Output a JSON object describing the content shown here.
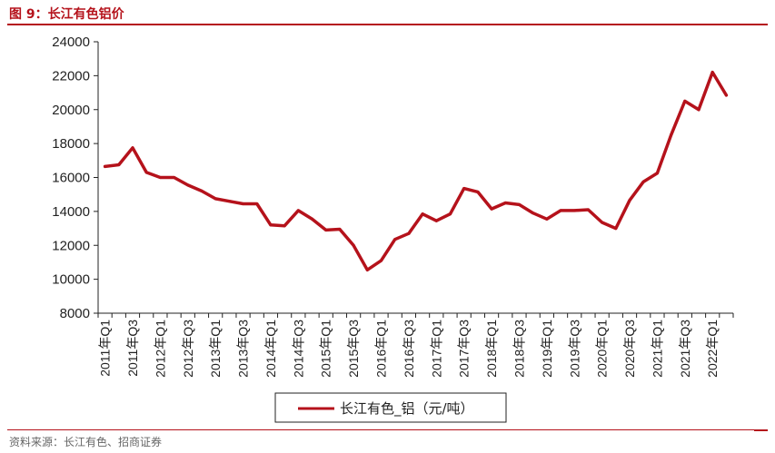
{
  "header": {
    "figure_title": "图 9：长江有色铝价"
  },
  "footer": {
    "source": "资料来源：长江有色、招商证券"
  },
  "chart_data": {
    "type": "line",
    "title": "",
    "xlabel": "",
    "ylabel": "",
    "ylim": [
      8000,
      24000
    ],
    "y_ticks": [
      8000,
      10000,
      12000,
      14000,
      16000,
      18000,
      20000,
      22000,
      24000
    ],
    "x_tick_labels": [
      "2011年Q1",
      "2011年Q3",
      "2012年Q1",
      "2012年Q3",
      "2013年Q1",
      "2013年Q3",
      "2014年Q1",
      "2014年Q3",
      "2015年Q1",
      "2015年Q3",
      "2016年Q1",
      "2016年Q3",
      "2017年Q1",
      "2017年Q3",
      "2018年Q1",
      "2018年Q3",
      "2019年Q1",
      "2019年Q3",
      "2020年Q1",
      "2020年Q3",
      "2021年Q1",
      "2021年Q3",
      "2022年Q1"
    ],
    "grid": false,
    "legend_position": "bottom",
    "series": [
      {
        "name": "长江有色_铝（元/吨）",
        "color": "#b5121b",
        "values": [
          16650,
          16750,
          17750,
          16300,
          16000,
          16000,
          15550,
          15200,
          14750,
          14600,
          14450,
          14450,
          13200,
          13150,
          14050,
          13550,
          12900,
          12950,
          12000,
          10550,
          11100,
          12350,
          12700,
          13850,
          13450,
          13850,
          15350,
          15150,
          14150,
          14500,
          14400,
          13900,
          13550,
          14050,
          14050,
          14100,
          13350,
          13000,
          14650,
          15750,
          16250,
          18500,
          20500,
          20000,
          22200,
          20850
        ]
      }
    ]
  }
}
